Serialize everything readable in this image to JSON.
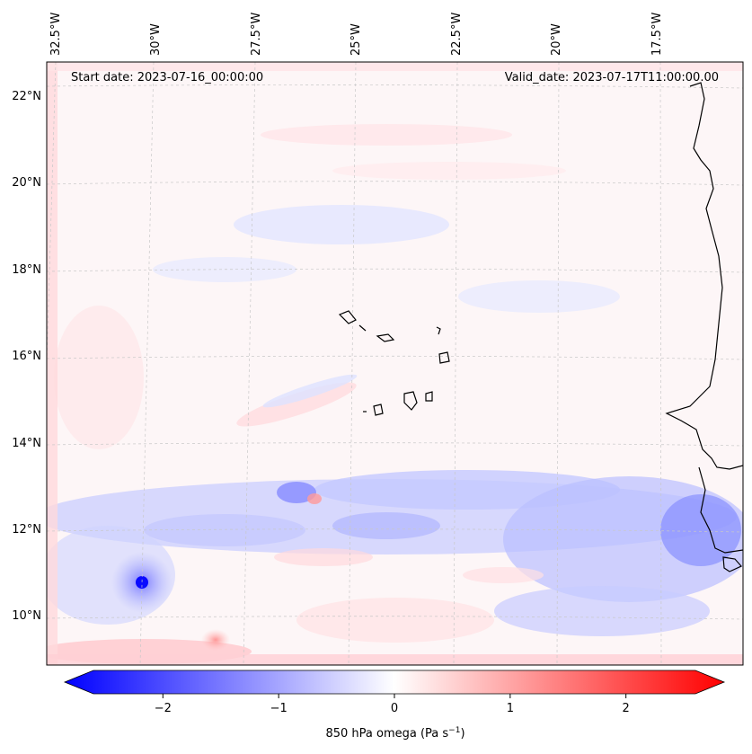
{
  "map": {
    "start_label": "Start date: 2023-07-16_00:00:00",
    "valid_label": "Valid_date: 2023-07-17T11:00:00.00",
    "lon_labels": [
      "32.5°W",
      "30°W",
      "27.5°W",
      "25°W",
      "22.5°W",
      "20°W",
      "17.5°W"
    ],
    "lat_labels": [
      "22°N",
      "20°N",
      "18°N",
      "16°N",
      "14°N",
      "12°N",
      "10°N"
    ]
  },
  "colorbar": {
    "label": "850 hPa omega (Pa s",
    "label_sup": "−1",
    "label_tail": ")",
    "ticks": [
      "−2",
      "−1",
      "0",
      "1",
      "2"
    ],
    "tick_values": [
      -2,
      -1,
      0,
      1,
      2
    ],
    "range": [
      -2.6,
      2.6
    ],
    "neg_color": "#0000ff",
    "mid_color": "#ffffff",
    "pos_color": "#ff0000"
  }
}
